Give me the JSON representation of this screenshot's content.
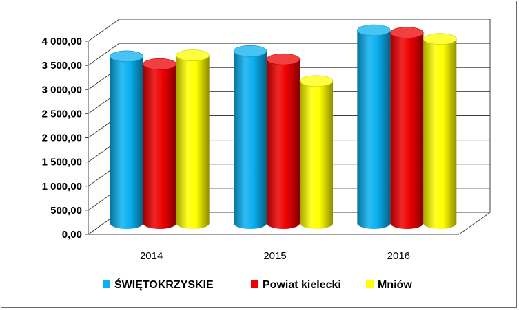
{
  "chart_data": {
    "type": "bar",
    "categories": [
      "2014",
      "2015",
      "2016"
    ],
    "series": [
      {
        "name": "ŚWIĘTOKRZYSKIE",
        "values": [
          3460,
          3570,
          4000
        ],
        "color": "#0ab0f0"
      },
      {
        "name": "Powiat kielecki",
        "values": [
          3300,
          3400,
          3950
        ],
        "color": "#ee0000"
      },
      {
        "name": "Mniów",
        "values": [
          3480,
          2950,
          3820
        ],
        "color": "#ffff00"
      }
    ],
    "y_ticks": [
      "0,00",
      "500,00",
      "1 000,00",
      "1 500,00",
      "2 000,00",
      "2 500,00",
      "3 000,00",
      "3 500,00",
      "4 000,00"
    ],
    "ylim": [
      0,
      4000
    ],
    "grid": true,
    "legend": "bottom",
    "title": "",
    "xlabel": "",
    "ylabel": ""
  }
}
